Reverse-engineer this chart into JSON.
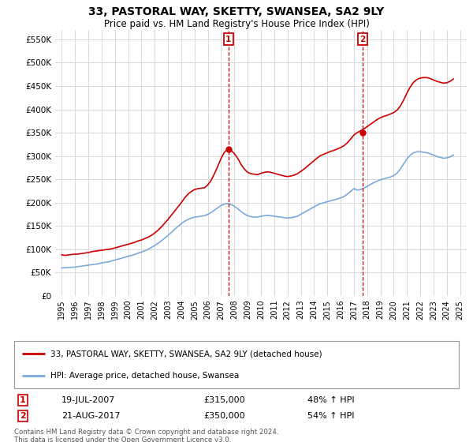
{
  "title": "33, PASTORAL WAY, SKETTY, SWANSEA, SA2 9LY",
  "subtitle": "Price paid vs. HM Land Registry's House Price Index (HPI)",
  "title_fontsize": 10.5,
  "subtitle_fontsize": 9,
  "ylim": [
    0,
    570000
  ],
  "yticks": [
    0,
    50000,
    100000,
    150000,
    200000,
    250000,
    300000,
    350000,
    400000,
    450000,
    500000,
    550000
  ],
  "ytick_labels": [
    "£0",
    "£50K",
    "£100K",
    "£150K",
    "£200K",
    "£250K",
    "£300K",
    "£350K",
    "£400K",
    "£450K",
    "£500K",
    "£550K"
  ],
  "background_color": "#ffffff",
  "grid_color": "#d8d8d8",
  "red_line_color": "#cc0000",
  "blue_line_color": "#7aaadd",
  "sale1_date": "19-JUL-2007",
  "sale1_price": 315000,
  "sale1_pct": "48%",
  "sale2_date": "21-AUG-2017",
  "sale2_price": 350000,
  "sale2_pct": "54%",
  "legend_line1": "33, PASTORAL WAY, SKETTY, SWANSEA, SA2 9LY (detached house)",
  "legend_line2": "HPI: Average price, detached house, Swansea",
  "footer1": "Contains HM Land Registry data © Crown copyright and database right 2024.",
  "footer2": "This data is licensed under the Open Government Licence v3.0.",
  "red_x": [
    1995.0,
    1995.25,
    1995.5,
    1995.75,
    1996.0,
    1996.25,
    1996.5,
    1996.75,
    1997.0,
    1997.25,
    1997.5,
    1997.75,
    1998.0,
    1998.25,
    1998.5,
    1998.75,
    1999.0,
    1999.25,
    1999.5,
    1999.75,
    2000.0,
    2000.25,
    2000.5,
    2000.75,
    2001.0,
    2001.25,
    2001.5,
    2001.75,
    2002.0,
    2002.25,
    2002.5,
    2002.75,
    2003.0,
    2003.25,
    2003.5,
    2003.75,
    2004.0,
    2004.25,
    2004.5,
    2004.75,
    2005.0,
    2005.25,
    2005.5,
    2005.75,
    2006.0,
    2006.25,
    2006.5,
    2006.75,
    2007.0,
    2007.25,
    2007.5,
    2007.75,
    2008.0,
    2008.25,
    2008.5,
    2008.75,
    2009.0,
    2009.25,
    2009.5,
    2009.75,
    2010.0,
    2010.25,
    2010.5,
    2010.75,
    2011.0,
    2011.25,
    2011.5,
    2011.75,
    2012.0,
    2012.25,
    2012.5,
    2012.75,
    2013.0,
    2013.25,
    2013.5,
    2013.75,
    2014.0,
    2014.25,
    2014.5,
    2014.75,
    2015.0,
    2015.25,
    2015.5,
    2015.75,
    2016.0,
    2016.25,
    2016.5,
    2016.75,
    2017.0,
    2017.25,
    2017.5,
    2017.75,
    2018.0,
    2018.25,
    2018.5,
    2018.75,
    2019.0,
    2019.25,
    2019.5,
    2019.75,
    2020.0,
    2020.25,
    2020.5,
    2020.75,
    2021.0,
    2021.25,
    2021.5,
    2021.75,
    2022.0,
    2022.25,
    2022.5,
    2022.75,
    2023.0,
    2023.25,
    2023.5,
    2023.75,
    2024.0,
    2024.25,
    2024.5
  ],
  "red_y": [
    88000,
    87000,
    88000,
    89000,
    89500,
    90000,
    91000,
    92000,
    93000,
    95000,
    96000,
    97000,
    98000,
    99000,
    100000,
    101000,
    103000,
    105000,
    107000,
    109000,
    111000,
    113000,
    115000,
    118000,
    120000,
    123000,
    126000,
    130000,
    135000,
    141000,
    148000,
    156000,
    164000,
    173000,
    182000,
    191000,
    200000,
    210000,
    218000,
    224000,
    228000,
    230000,
    231000,
    232000,
    238000,
    248000,
    262000,
    278000,
    295000,
    308000,
    315000,
    312000,
    305000,
    295000,
    282000,
    272000,
    265000,
    262000,
    261000,
    260000,
    263000,
    265000,
    266000,
    265000,
    263000,
    261000,
    259000,
    257000,
    256000,
    257000,
    259000,
    262000,
    267000,
    272000,
    278000,
    284000,
    290000,
    296000,
    301000,
    304000,
    307000,
    310000,
    312000,
    315000,
    318000,
    322000,
    328000,
    336000,
    345000,
    350000,
    354000,
    358000,
    363000,
    368000,
    373000,
    378000,
    382000,
    385000,
    387000,
    390000,
    393000,
    398000,
    407000,
    420000,
    435000,
    448000,
    458000,
    464000,
    467000,
    468000,
    468000,
    466000,
    463000,
    460000,
    458000,
    456000,
    457000,
    460000,
    465000
  ],
  "blue_x": [
    1995.0,
    1995.25,
    1995.5,
    1995.75,
    1996.0,
    1996.25,
    1996.5,
    1996.75,
    1997.0,
    1997.25,
    1997.5,
    1997.75,
    1998.0,
    1998.25,
    1998.5,
    1998.75,
    1999.0,
    1999.25,
    1999.5,
    1999.75,
    2000.0,
    2000.25,
    2000.5,
    2000.75,
    2001.0,
    2001.25,
    2001.5,
    2001.75,
    2002.0,
    2002.25,
    2002.5,
    2002.75,
    2003.0,
    2003.25,
    2003.5,
    2003.75,
    2004.0,
    2004.25,
    2004.5,
    2004.75,
    2005.0,
    2005.25,
    2005.5,
    2005.75,
    2006.0,
    2006.25,
    2006.5,
    2006.75,
    2007.0,
    2007.25,
    2007.5,
    2007.75,
    2008.0,
    2008.25,
    2008.5,
    2008.75,
    2009.0,
    2009.25,
    2009.5,
    2009.75,
    2010.0,
    2010.25,
    2010.5,
    2010.75,
    2011.0,
    2011.25,
    2011.5,
    2011.75,
    2012.0,
    2012.25,
    2012.5,
    2012.75,
    2013.0,
    2013.25,
    2013.5,
    2013.75,
    2014.0,
    2014.25,
    2014.5,
    2014.75,
    2015.0,
    2015.25,
    2015.5,
    2015.75,
    2016.0,
    2016.25,
    2016.5,
    2016.75,
    2017.0,
    2017.25,
    2017.5,
    2017.75,
    2018.0,
    2018.25,
    2018.5,
    2018.75,
    2019.0,
    2019.25,
    2019.5,
    2019.75,
    2020.0,
    2020.25,
    2020.5,
    2020.75,
    2021.0,
    2021.25,
    2021.5,
    2021.75,
    2022.0,
    2022.25,
    2022.5,
    2022.75,
    2023.0,
    2023.25,
    2023.5,
    2023.75,
    2024.0,
    2024.25,
    2024.5
  ],
  "blue_y": [
    60000,
    60500,
    61000,
    61500,
    62000,
    63000,
    64000,
    65000,
    66000,
    67000,
    68000,
    69000,
    71000,
    72000,
    73000,
    75000,
    77000,
    79000,
    81000,
    83000,
    85000,
    87000,
    89000,
    92000,
    94000,
    97000,
    100000,
    104000,
    108000,
    113000,
    118000,
    124000,
    130000,
    136000,
    143000,
    149000,
    155000,
    160000,
    164000,
    167000,
    169000,
    170000,
    171000,
    172000,
    175000,
    179000,
    184000,
    189000,
    194000,
    197000,
    198000,
    196000,
    192000,
    187000,
    181000,
    176000,
    172000,
    170000,
    169000,
    169000,
    171000,
    172000,
    173000,
    172000,
    171000,
    170000,
    169000,
    168000,
    167000,
    168000,
    169000,
    171000,
    175000,
    179000,
    183000,
    187000,
    191000,
    195000,
    198000,
    200000,
    202000,
    204000,
    206000,
    208000,
    210000,
    213000,
    218000,
    224000,
    230000,
    227000,
    228000,
    231000,
    235000,
    239000,
    243000,
    246000,
    249000,
    251000,
    253000,
    255000,
    258000,
    263000,
    272000,
    283000,
    294000,
    302000,
    307000,
    309000,
    309000,
    308000,
    307000,
    305000,
    302000,
    299000,
    297000,
    295000,
    296000,
    298000,
    302000
  ],
  "sale1_x": 2007.55,
  "sale2_x": 2017.65,
  "xlim_left": 1994.5,
  "xlim_right": 2025.5,
  "xticks": [
    1995,
    1996,
    1997,
    1998,
    1999,
    2000,
    2001,
    2002,
    2003,
    2004,
    2005,
    2006,
    2007,
    2008,
    2009,
    2010,
    2011,
    2012,
    2013,
    2014,
    2015,
    2016,
    2017,
    2018,
    2019,
    2020,
    2021,
    2022,
    2023,
    2024,
    2025
  ]
}
